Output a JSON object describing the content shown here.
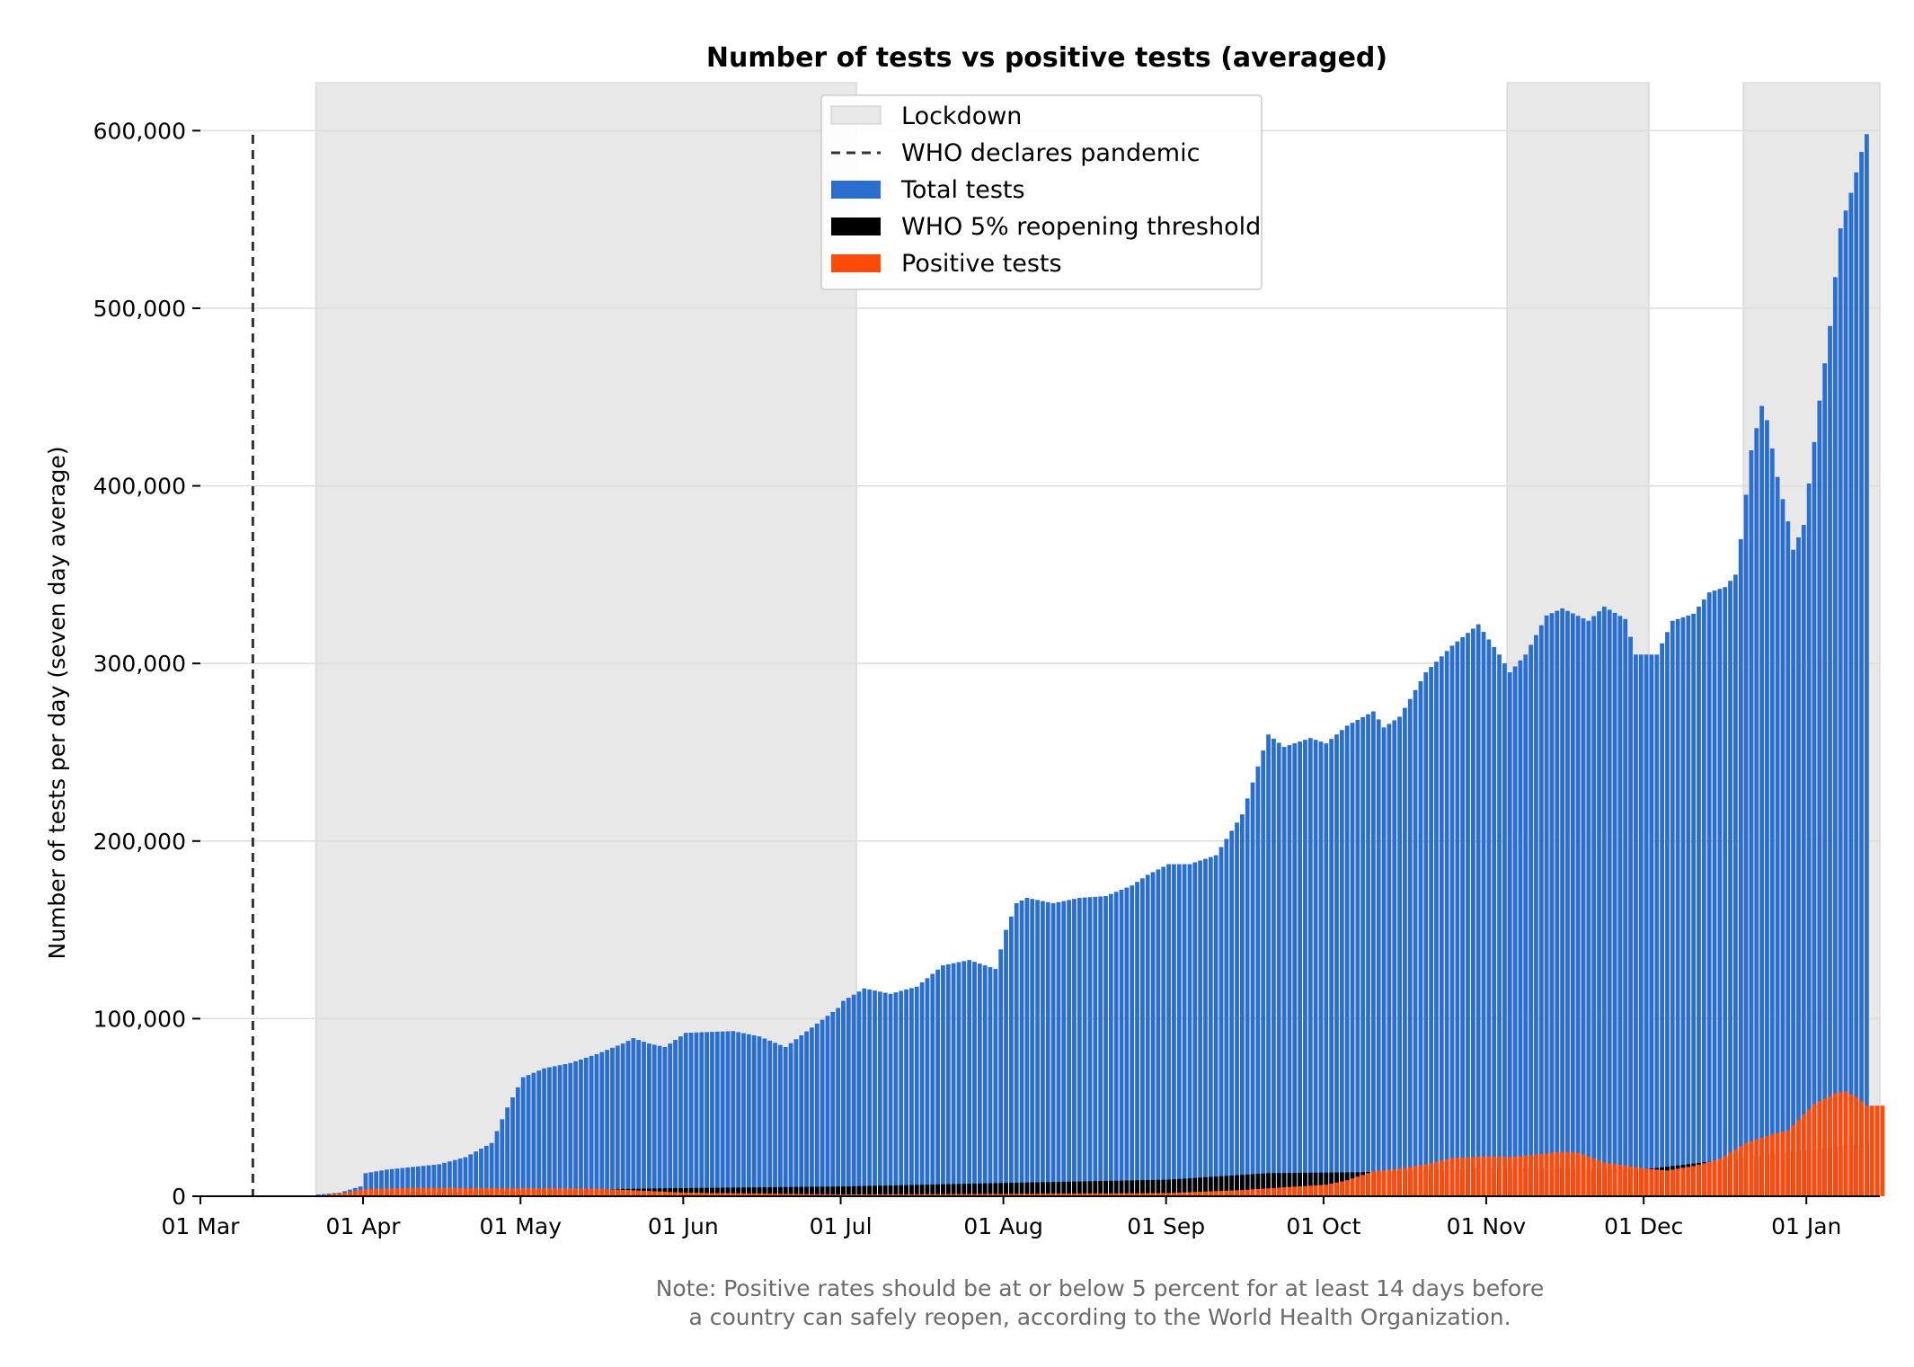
{
  "chart_data": {
    "type": "bar",
    "title": "Number of tests vs positive tests (averaged)",
    "ylabel": "Number of tests per day (seven day average)",
    "xlabel": "",
    "ylim": [
      0,
      627000
    ],
    "x_range": [
      "2020-03-01",
      "2021-01-15"
    ],
    "grid": "horizontal",
    "legend_placement": "top-center",
    "y_ticks": [
      {
        "value": 0,
        "label": "0"
      },
      {
        "value": 100000,
        "label": "100,000"
      },
      {
        "value": 200000,
        "label": "200,000"
      },
      {
        "value": 300000,
        "label": "300,000"
      },
      {
        "value": 400000,
        "label": "400,000"
      },
      {
        "value": 500000,
        "label": "500,000"
      },
      {
        "value": 600000,
        "label": "600,000"
      }
    ],
    "x_ticks": [
      {
        "date": "2020-03-01",
        "label": "01 Mar"
      },
      {
        "date": "2020-04-01",
        "label": "01 Apr"
      },
      {
        "date": "2020-05-01",
        "label": "01 May"
      },
      {
        "date": "2020-06-01",
        "label": "01 Jun"
      },
      {
        "date": "2020-07-01",
        "label": "01 Jul"
      },
      {
        "date": "2020-08-01",
        "label": "01 Aug"
      },
      {
        "date": "2020-09-01",
        "label": "01 Sep"
      },
      {
        "date": "2020-10-01",
        "label": "01 Oct"
      },
      {
        "date": "2020-11-01",
        "label": "01 Nov"
      },
      {
        "date": "2020-12-01",
        "label": "01 Dec"
      },
      {
        "date": "2021-01-01",
        "label": "01 Jan"
      }
    ],
    "lockdowns": [
      {
        "start": "2020-03-23",
        "end": "2020-07-04"
      },
      {
        "start": "2020-11-05",
        "end": "2020-12-02"
      },
      {
        "start": "2020-12-20",
        "end": "2021-01-15"
      }
    ],
    "pandemic_declared": "2020-03-11",
    "legend": [
      {
        "label": "Lockdown",
        "kind": "patch",
        "color": "#e8e8e8"
      },
      {
        "label": "WHO declares pandemic",
        "kind": "dashed-line",
        "color": "#333333"
      },
      {
        "label": "Total tests",
        "kind": "patch",
        "color": "#2a6fd0"
      },
      {
        "label": "WHO 5% reopening threshold",
        "kind": "patch",
        "color": "#000000"
      },
      {
        "label": "Positive tests",
        "kind": "patch",
        "color": "#ff4a0a"
      }
    ],
    "colors": {
      "total": "#2a6fd0",
      "threshold": "#000000",
      "positive": "#ff4a0a",
      "lockdown": "#e8e8e8",
      "grid": "#dcdcdc",
      "pandemic_line": "#333333"
    },
    "series": [
      {
        "name": "Total tests",
        "key": "total",
        "anchors": [
          [
            "2020-03-23",
            1000
          ],
          [
            "2020-03-27",
            2000
          ],
          [
            "2020-03-31",
            5500
          ],
          [
            "2020-04-01",
            13000
          ],
          [
            "2020-04-05",
            15000
          ],
          [
            "2020-04-10",
            16500
          ],
          [
            "2020-04-15",
            18000
          ],
          [
            "2020-04-20",
            22000
          ],
          [
            "2020-04-25",
            30000
          ],
          [
            "2020-04-28",
            50000
          ],
          [
            "2020-05-01",
            67000
          ],
          [
            "2020-05-05",
            72000
          ],
          [
            "2020-05-10",
            75000
          ],
          [
            "2020-05-15",
            80000
          ],
          [
            "2020-05-20",
            86000
          ],
          [
            "2020-05-22",
            89000
          ],
          [
            "2020-05-25",
            86000
          ],
          [
            "2020-05-28",
            84000
          ],
          [
            "2020-06-01",
            92000
          ],
          [
            "2020-06-10",
            93000
          ],
          [
            "2020-06-15",
            90000
          ],
          [
            "2020-06-20",
            84000
          ],
          [
            "2020-06-25",
            95000
          ],
          [
            "2020-06-30",
            106000
          ],
          [
            "2020-07-01",
            110000
          ],
          [
            "2020-07-05",
            117000
          ],
          [
            "2020-07-10",
            114000
          ],
          [
            "2020-07-15",
            118000
          ],
          [
            "2020-07-20",
            130000
          ],
          [
            "2020-07-25",
            133000
          ],
          [
            "2020-07-30",
            128000
          ],
          [
            "2020-08-01",
            150000
          ],
          [
            "2020-08-03",
            165000
          ],
          [
            "2020-08-05",
            168000
          ],
          [
            "2020-08-10",
            165000
          ],
          [
            "2020-08-15",
            168000
          ],
          [
            "2020-08-20",
            169000
          ],
          [
            "2020-08-25",
            175000
          ],
          [
            "2020-08-28",
            181000
          ],
          [
            "2020-09-01",
            187000
          ],
          [
            "2020-09-05",
            187000
          ],
          [
            "2020-09-10",
            192000
          ],
          [
            "2020-09-15",
            215000
          ],
          [
            "2020-09-20",
            260000
          ],
          [
            "2020-09-23",
            253000
          ],
          [
            "2020-09-28",
            258000
          ],
          [
            "2020-10-01",
            255000
          ],
          [
            "2020-10-05",
            265000
          ],
          [
            "2020-10-10",
            273000
          ],
          [
            "2020-10-12",
            264000
          ],
          [
            "2020-10-15",
            270000
          ],
          [
            "2020-10-20",
            295000
          ],
          [
            "2020-10-25",
            310000
          ],
          [
            "2020-10-30",
            322000
          ],
          [
            "2020-11-03",
            305000
          ],
          [
            "2020-11-05",
            295000
          ],
          [
            "2020-11-08",
            305000
          ],
          [
            "2020-11-12",
            327000
          ],
          [
            "2020-11-15",
            331000
          ],
          [
            "2020-11-20",
            324000
          ],
          [
            "2020-11-23",
            332000
          ],
          [
            "2020-11-27",
            325000
          ],
          [
            "2020-11-29",
            305000
          ],
          [
            "2020-12-03",
            305000
          ],
          [
            "2020-12-06",
            324000
          ],
          [
            "2020-12-10",
            328000
          ],
          [
            "2020-12-13",
            340000
          ],
          [
            "2020-12-16",
            343000
          ],
          [
            "2020-12-18",
            350000
          ],
          [
            "2020-12-19",
            370000
          ],
          [
            "2020-12-21",
            420000
          ],
          [
            "2020-12-23",
            445000
          ],
          [
            "2020-12-24",
            437000
          ],
          [
            "2020-12-26",
            405000
          ],
          [
            "2020-12-28",
            380000
          ],
          [
            "2020-12-29",
            364000
          ],
          [
            "2020-12-31",
            378000
          ],
          [
            "2021-01-03",
            448000
          ],
          [
            "2021-01-05",
            490000
          ],
          [
            "2021-01-07",
            545000
          ],
          [
            "2021-01-09",
            565000
          ],
          [
            "2021-01-11",
            588000
          ],
          [
            "2021-01-12",
            598000
          ]
        ]
      },
      {
        "name": "WHO 5% reopening threshold",
        "key": "threshold",
        "anchors": [
          [
            "2020-03-23",
            50
          ],
          [
            "2020-04-01",
            650
          ],
          [
            "2020-05-01",
            3350
          ],
          [
            "2020-06-01",
            4600
          ],
          [
            "2020-07-01",
            5500
          ],
          [
            "2020-08-01",
            7500
          ],
          [
            "2020-09-01",
            9350
          ],
          [
            "2020-09-20",
            13000
          ],
          [
            "2020-10-10",
            13600
          ],
          [
            "2020-11-01",
            16000
          ],
          [
            "2020-12-01",
            15250
          ],
          [
            "2021-01-12",
            29900
          ]
        ]
      },
      {
        "name": "Positive tests",
        "key": "positive",
        "anchors": [
          [
            "2020-03-23",
            300
          ],
          [
            "2020-03-28",
            2000
          ],
          [
            "2020-04-01",
            4000
          ],
          [
            "2020-04-10",
            4700
          ],
          [
            "2020-05-01",
            4500
          ],
          [
            "2020-05-15",
            4300
          ],
          [
            "2020-06-01",
            2000
          ],
          [
            "2020-07-01",
            1000
          ],
          [
            "2020-08-01",
            1300
          ],
          [
            "2020-09-01",
            1800
          ],
          [
            "2020-09-15",
            3500
          ],
          [
            "2020-10-01",
            6500
          ],
          [
            "2020-10-05",
            9000
          ],
          [
            "2020-10-10",
            14000
          ],
          [
            "2020-10-15",
            15500
          ],
          [
            "2020-10-20",
            18000
          ],
          [
            "2020-10-25",
            21500
          ],
          [
            "2020-11-01",
            22500
          ],
          [
            "2020-11-05",
            22000
          ],
          [
            "2020-11-10",
            23500
          ],
          [
            "2020-11-15",
            25000
          ],
          [
            "2020-11-18",
            24500
          ],
          [
            "2020-11-23",
            19000
          ],
          [
            "2020-12-01",
            15500
          ],
          [
            "2020-12-05",
            14500
          ],
          [
            "2020-12-10",
            17000
          ],
          [
            "2020-12-15",
            21000
          ],
          [
            "2020-12-20",
            30000
          ],
          [
            "2020-12-25",
            35000
          ],
          [
            "2020-12-28",
            37000
          ],
          [
            "2021-01-02",
            52000
          ],
          [
            "2021-01-06",
            58000
          ],
          [
            "2021-01-08",
            59000
          ],
          [
            "2021-01-10",
            56000
          ],
          [
            "2021-01-12",
            51000
          ],
          [
            "2021-01-15",
            51000
          ]
        ]
      }
    ]
  },
  "note": {
    "line1": "Note: Positive rates should be at or below 5 percent for at least 14 days before",
    "line2": "a country can safely reopen, according to the World Health Organization."
  }
}
